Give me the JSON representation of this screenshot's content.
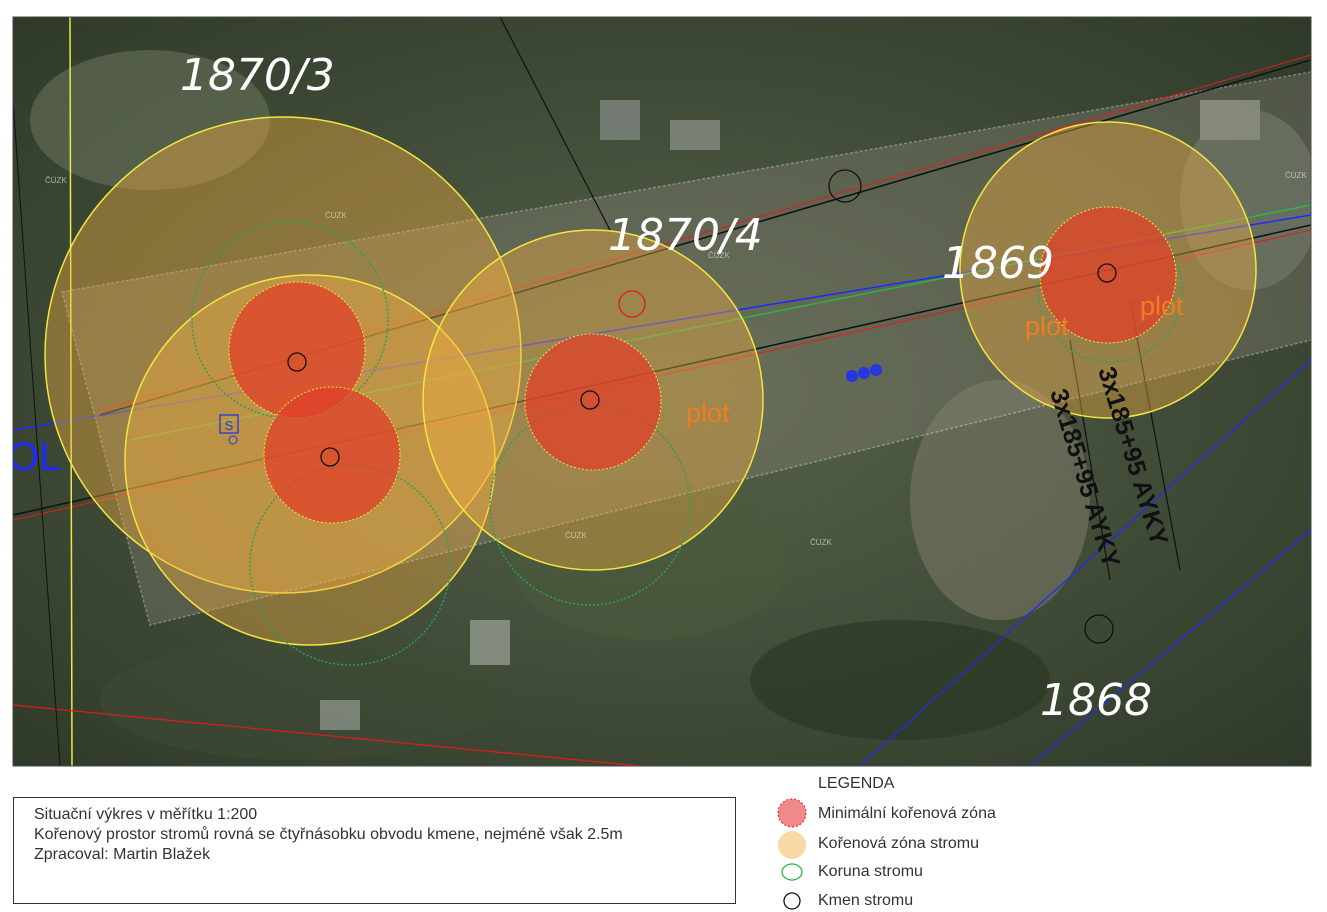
{
  "map": {
    "parcels": [
      "1870/3",
      "1870/4",
      "1869",
      "1868"
    ],
    "fence_labels": [
      "plot",
      "plot",
      "plot"
    ],
    "cable_labels": [
      "3x185+95 AYKY",
      "3x185+95 AYKY"
    ],
    "edge_label": "OL",
    "symbol": "S",
    "watermarks": [
      "ČÚZK",
      "ČÚZK",
      "ČÚZK",
      "ČÚZK",
      "ČÚZK",
      "ČÚZK"
    ]
  },
  "info": {
    "lines": [
      "Situační výkres v měřítku 1:200",
      "Kořenový prostor stromů rovná se čtyřnásobku obvodu kmene, nejméně však 2.5m",
      "Zpracoval: Martin Blažek"
    ]
  },
  "legend": {
    "title": "LEGENDA",
    "items": [
      "Minimální kořenová zóna",
      "Kořenová zóna stromu",
      "Koruna stromu",
      "Kmen stromu"
    ]
  }
}
